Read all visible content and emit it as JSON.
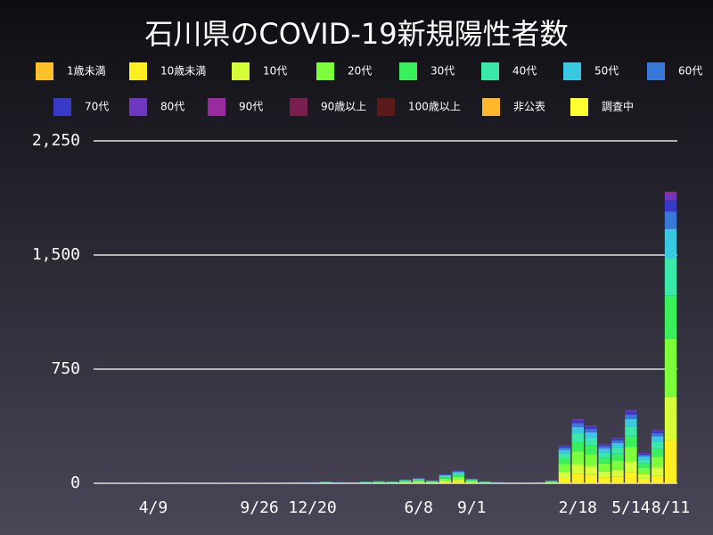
{
  "chart_data": {
    "type": "stacked_bar",
    "title": "石川県のCOVID-19新規陽性者数",
    "categories": [
      null,
      null,
      null,
      null,
      "4/9",
      null,
      null,
      null,
      null,
      null,
      null,
      null,
      "9/26",
      null,
      null,
      null,
      "12/20",
      null,
      null,
      null,
      null,
      null,
      null,
      null,
      "6/8",
      null,
      null,
      null,
      "9/1",
      null,
      null,
      null,
      null,
      null,
      null,
      null,
      "2/18",
      null,
      null,
      null,
      "5/14",
      null,
      null,
      "8/11"
    ],
    "series": [
      {
        "name": "1歳未満",
        "color": "#ffc02a",
        "values": [
          0,
          0,
          0,
          0,
          0,
          0,
          0,
          0,
          0,
          0,
          0,
          0,
          0,
          0,
          0,
          0,
          0,
          0,
          0,
          0,
          0,
          0,
          0,
          0,
          0,
          0,
          0,
          0,
          0,
          0,
          0,
          0,
          0,
          0,
          0,
          0,
          0,
          0,
          0,
          0,
          0,
          0,
          0,
          0
        ]
      },
      {
        "name": "10歳未満",
        "color": "#ffee22",
        "values": [
          0,
          0,
          0,
          0,
          0,
          0,
          0,
          0,
          0,
          0,
          0,
          0,
          0,
          0,
          1,
          1,
          1,
          1,
          1,
          1,
          1,
          2,
          2,
          4,
          5,
          3,
          9,
          13,
          4,
          2,
          1,
          1,
          0,
          1,
          3,
          38,
          63,
          57,
          39,
          45,
          72,
          30,
          52,
          285
        ]
      },
      {
        "name": "10代",
        "color": "#d6ff3a",
        "values": [
          0,
          0,
          0,
          0,
          0,
          0,
          0,
          0,
          0,
          0,
          0,
          0,
          0,
          1,
          1,
          1,
          1,
          2,
          1,
          1,
          2,
          2,
          2,
          4,
          5,
          3,
          9,
          13,
          5,
          2,
          1,
          1,
          1,
          1,
          3,
          38,
          63,
          57,
          39,
          45,
          72,
          30,
          53,
          285
        ]
      },
      {
        "name": "20代",
        "color": "#7cff3a",
        "values": [
          0,
          1,
          1,
          1,
          1,
          1,
          0,
          1,
          1,
          1,
          1,
          1,
          1,
          1,
          1,
          1,
          2,
          3,
          2,
          1,
          3,
          3,
          3,
          5,
          7,
          4,
          12,
          17,
          6,
          3,
          2,
          1,
          1,
          1,
          4,
          50,
          84,
          76,
          52,
          60,
          96,
          40,
          70,
          380
        ]
      },
      {
        "name": "30代",
        "color": "#3af05a",
        "values": [
          0,
          0,
          1,
          1,
          1,
          0,
          0,
          0,
          0,
          1,
          0,
          1,
          1,
          1,
          1,
          1,
          1,
          2,
          1,
          1,
          2,
          3,
          2,
          4,
          5,
          3,
          9,
          13,
          5,
          2,
          1,
          1,
          1,
          1,
          3,
          38,
          63,
          57,
          39,
          45,
          72,
          30,
          52,
          285
        ]
      },
      {
        "name": "40代",
        "color": "#3ae8a8",
        "values": [
          0,
          0,
          0,
          1,
          0,
          0,
          0,
          0,
          0,
          0,
          0,
          0,
          1,
          1,
          1,
          1,
          1,
          1,
          1,
          1,
          1,
          2,
          2,
          3,
          5,
          3,
          8,
          11,
          4,
          2,
          1,
          1,
          1,
          1,
          3,
          32,
          55,
          49,
          34,
          39,
          62,
          26,
          46,
          247
        ]
      },
      {
        "name": "50代",
        "color": "#3ac8e0",
        "values": [
          0,
          0,
          0,
          0,
          0,
          0,
          0,
          0,
          0,
          0,
          0,
          0,
          0,
          0,
          0,
          1,
          1,
          1,
          1,
          1,
          1,
          2,
          1,
          3,
          4,
          2,
          6,
          8,
          3,
          1,
          1,
          0,
          0,
          1,
          2,
          25,
          42,
          38,
          26,
          30,
          48,
          20,
          35,
          190
        ]
      },
      {
        "name": "60代",
        "color": "#3a78d8",
        "values": [
          0,
          0,
          0,
          0,
          0,
          0,
          0,
          0,
          0,
          0,
          0,
          0,
          0,
          0,
          0,
          0,
          1,
          0,
          1,
          0,
          0,
          1,
          0,
          1,
          2,
          1,
          4,
          5,
          2,
          0,
          1,
          0,
          0,
          0,
          1,
          15,
          25,
          23,
          16,
          18,
          29,
          12,
          21,
          114
        ]
      },
      {
        "name": "70代",
        "color": "#3a3ac8",
        "values": [
          0,
          0,
          0,
          0,
          0,
          0,
          0,
          0,
          0,
          0,
          0,
          0,
          0,
          0,
          0,
          0,
          0,
          0,
          0,
          0,
          0,
          0,
          0,
          1,
          1,
          1,
          2,
          3,
          1,
          0,
          0,
          0,
          0,
          0,
          1,
          10,
          17,
          15,
          10,
          12,
          19,
          8,
          14,
          76
        ]
      },
      {
        "name": "80代",
        "color": "#7038c0",
        "values": [
          0,
          0,
          0,
          0,
          0,
          0,
          0,
          0,
          0,
          0,
          0,
          0,
          0,
          0,
          0,
          0,
          0,
          0,
          0,
          0,
          0,
          0,
          0,
          0,
          1,
          0,
          1,
          2,
          0,
          0,
          0,
          0,
          0,
          0,
          0,
          4,
          8,
          8,
          5,
          6,
          10,
          4,
          7,
          38
        ]
      },
      {
        "name": "90代",
        "color": "#9a2aa0",
        "values": [
          0,
          0,
          0,
          0,
          0,
          0,
          0,
          0,
          0,
          0,
          0,
          0,
          0,
          0,
          0,
          0,
          0,
          0,
          0,
          0,
          0,
          0,
          0,
          0,
          0,
          0,
          0,
          0,
          0,
          0,
          0,
          0,
          0,
          0,
          0,
          0,
          3,
          0,
          0,
          0,
          0,
          0,
          0,
          15
        ]
      },
      {
        "name": "90歳以上",
        "color": "#7a2050",
        "values": [
          0,
          0,
          0,
          0,
          0,
          0,
          0,
          0,
          0,
          0,
          0,
          0,
          0,
          0,
          0,
          0,
          0,
          0,
          0,
          0,
          0,
          0,
          0,
          0,
          0,
          0,
          0,
          0,
          0,
          0,
          0,
          0,
          0,
          0,
          0,
          0,
          0,
          0,
          0,
          0,
          0,
          0,
          0,
          0
        ]
      },
      {
        "name": "100歳以上",
        "color": "#5a1a1a",
        "values": [
          0,
          0,
          0,
          0,
          0,
          0,
          0,
          0,
          0,
          0,
          0,
          0,
          0,
          0,
          0,
          0,
          0,
          0,
          0,
          0,
          0,
          0,
          0,
          0,
          0,
          0,
          0,
          0,
          0,
          0,
          0,
          0,
          0,
          0,
          0,
          0,
          0,
          0,
          0,
          0,
          0,
          0,
          0,
          0
        ]
      },
      {
        "name": "非公表",
        "color": "#ffb82a",
        "values": [
          0,
          0,
          0,
          0,
          0,
          0,
          0,
          0,
          0,
          0,
          0,
          0,
          0,
          0,
          0,
          0,
          0,
          0,
          0,
          0,
          0,
          0,
          0,
          0,
          0,
          0,
          0,
          0,
          0,
          0,
          0,
          0,
          0,
          0,
          0,
          0,
          0,
          0,
          0,
          0,
          0,
          0,
          0,
          0
        ]
      },
      {
        "name": "調査中",
        "color": "#ffff30",
        "values": [
          0,
          0,
          0,
          0,
          0,
          0,
          0,
          0,
          0,
          0,
          0,
          0,
          0,
          0,
          0,
          0,
          0,
          0,
          0,
          0,
          0,
          0,
          0,
          0,
          0,
          0,
          0,
          0,
          0,
          0,
          0,
          0,
          0,
          0,
          0,
          0,
          0,
          0,
          0,
          0,
          0,
          0,
          0,
          0
        ]
      }
    ],
    "ylim": [
      0,
      2250
    ],
    "yticks": [
      0,
      750,
      {
        "value": 1500,
        "label": "1,500"
      },
      {
        "value": 2250,
        "label": "2,250"
      }
    ],
    "grid": true
  }
}
